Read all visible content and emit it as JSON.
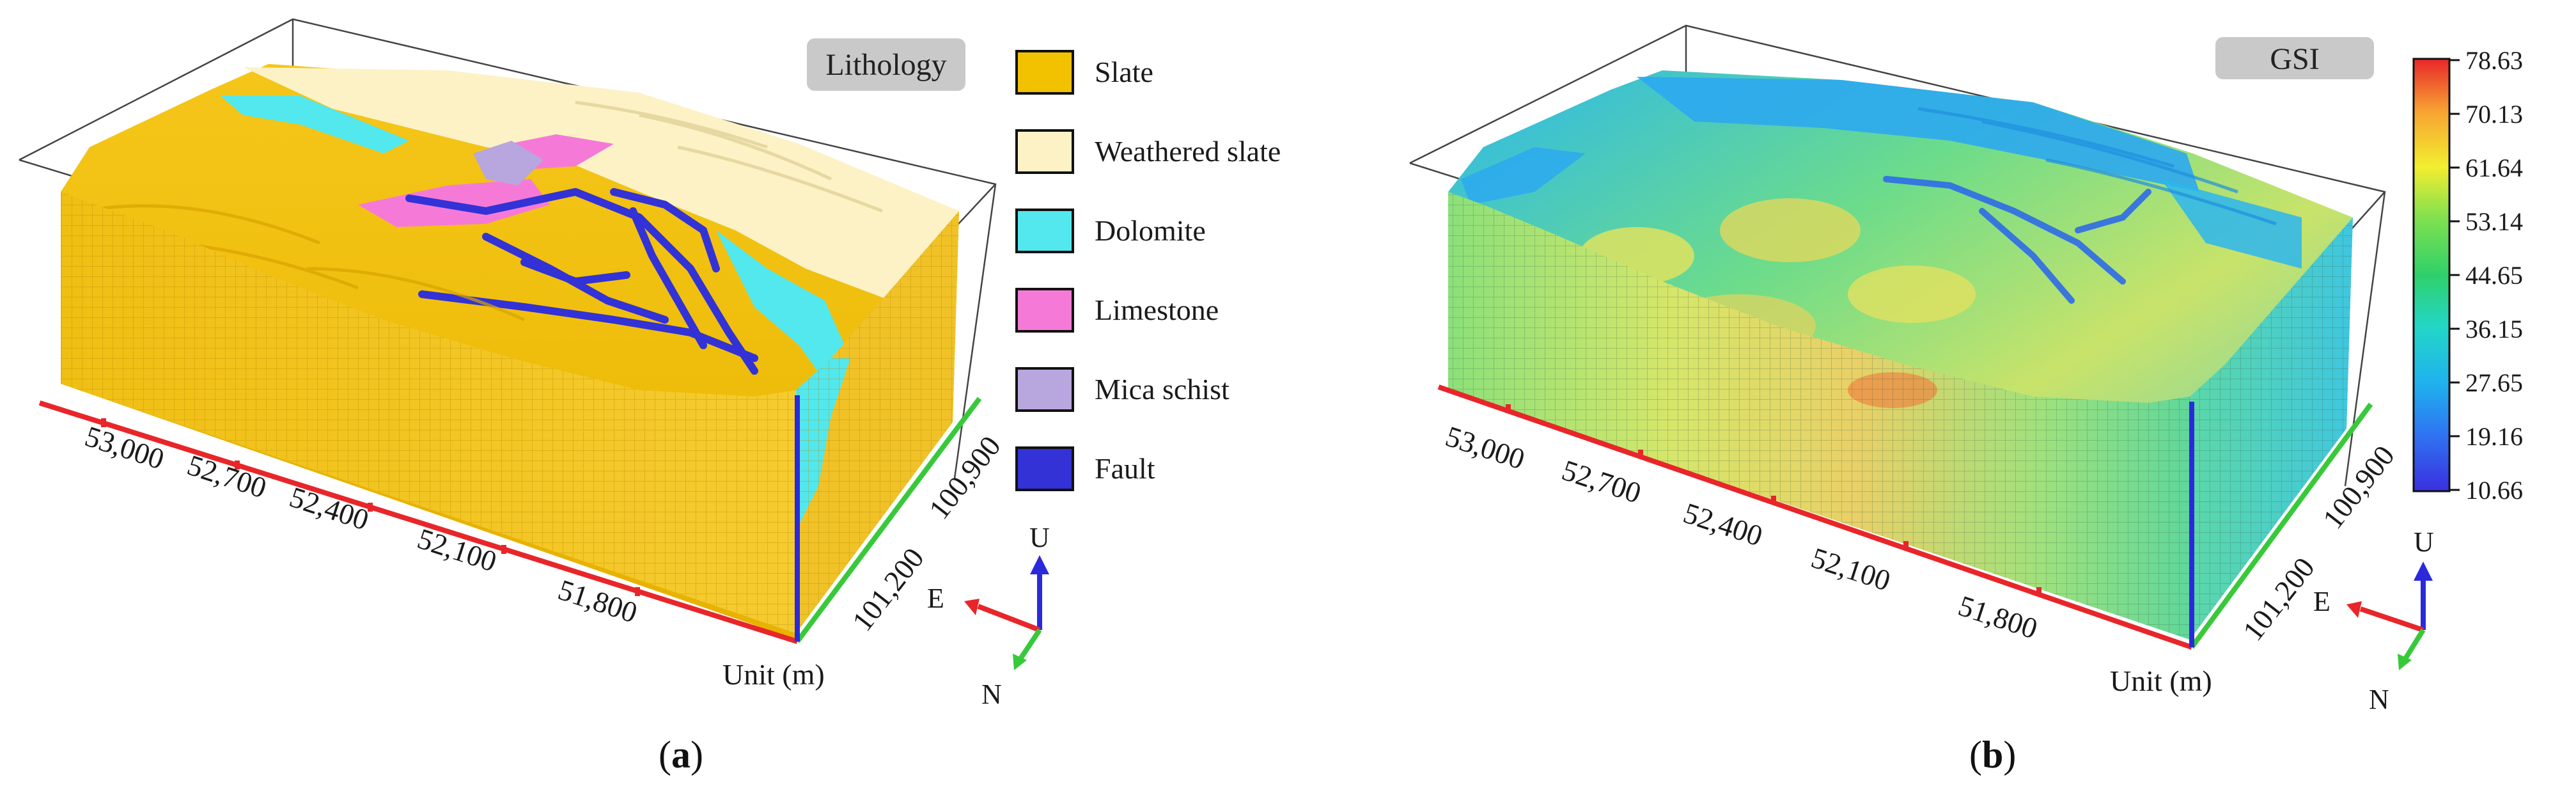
{
  "panel_a": {
    "label_open": "(",
    "label_letter": "a",
    "label_close": ")",
    "badge": "Lithology",
    "axis_x_ticks": [
      "53,000",
      "52,700",
      "52,400",
      "52,100",
      "51,800"
    ],
    "axis_y_ticks": [
      "100,900",
      "101,200"
    ],
    "unit_label": "Unit (m)",
    "compass": {
      "up": "U",
      "east": "E",
      "north": "N"
    },
    "legend": [
      {
        "label": "Slate",
        "color": "#F2C200"
      },
      {
        "label": "Weathered slate",
        "color": "#FCF2C6"
      },
      {
        "label": "Dolomite",
        "color": "#52E8EE"
      },
      {
        "label": "Limestone",
        "color": "#F57AD8"
      },
      {
        "label": "Mica schist",
        "color": "#B8A6DE"
      },
      {
        "label": "Fault",
        "color": "#3232D6"
      }
    ]
  },
  "panel_b": {
    "label_open": "(",
    "label_letter": "b",
    "label_close": ")",
    "badge": "GSI",
    "axis_x_ticks": [
      "53,000",
      "52,700",
      "52,400",
      "52,100",
      "51,800"
    ],
    "axis_y_ticks": [
      "100,900",
      "101,200"
    ],
    "unit_label": "Unit (m)",
    "compass": {
      "up": "U",
      "east": "E",
      "north": "N"
    },
    "colorbar": {
      "ticks": [
        "78.63",
        "70.13",
        "61.64",
        "53.14",
        "44.65",
        "36.15",
        "27.65",
        "19.16",
        "10.66"
      ],
      "colors": [
        "#E8262A",
        "#F7A233",
        "#F3EE2F",
        "#7FE04F",
        "#2FD06A",
        "#23D6C7",
        "#1FB2EE",
        "#2F73F2",
        "#3A2FE0"
      ]
    }
  },
  "colors": {
    "axis_x": "#E8262A",
    "axis_y": "#38C93A",
    "axis_z": "#2A2ADB",
    "badge_bg": "#C9C9C9"
  }
}
